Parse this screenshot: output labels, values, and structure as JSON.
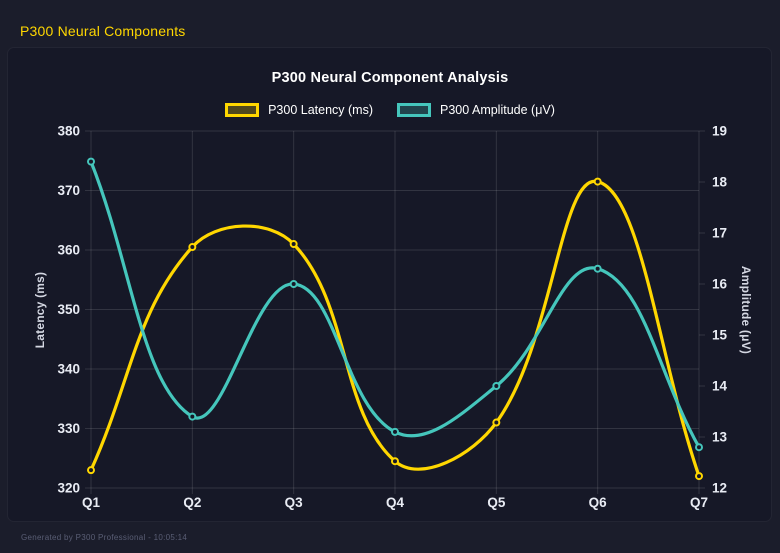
{
  "header": {
    "title": "P300 Neural Components"
  },
  "footer": {
    "text": "Generated by P300 Professional - 10:05:14"
  },
  "colors": {
    "page_background": "#1b1d2b",
    "panel_background": "#161827",
    "grid": "rgba(255,255,255,0.12)",
    "tick_text": "#e9ecf4",
    "axis_title_text": "#d4d7e2",
    "title_text": "#ffffff",
    "header_accent": "#FFD700",
    "footer_text": "#5a5e75",
    "latency_line": "#FFD700",
    "amplitude_line": "#45C6BC"
  },
  "chart_data": {
    "type": "line",
    "title": "P300 Neural Component Analysis",
    "categories": [
      "Q1",
      "Q2",
      "Q3",
      "Q4",
      "Q5",
      "Q6",
      "Q7"
    ],
    "series": [
      {
        "name": "P300 Latency (ms)",
        "axis": "left",
        "color": "#FFD700",
        "fill": "rgba(255,215,0,0.25)",
        "values": [
          323,
          360.5,
          361,
          324.5,
          331,
          371.5,
          322
        ]
      },
      {
        "name": "P300 Amplitude (μV)",
        "axis": "right",
        "color": "#45C6BC",
        "fill": "rgba(69,198,188,0.25)",
        "values": [
          18.4,
          13.4,
          16.0,
          13.1,
          14.0,
          16.3,
          12.8
        ]
      }
    ],
    "left_axis": {
      "label": "Latency (ms)",
      "min": 320,
      "max": 380,
      "tick_step": 10,
      "ticks": [
        320,
        330,
        340,
        350,
        360,
        370,
        380
      ]
    },
    "right_axis": {
      "label": "Amplitude (μV)",
      "min": 12,
      "max": 19,
      "tick_step": 1,
      "ticks": [
        12,
        13,
        14,
        15,
        16,
        17,
        18,
        19
      ]
    },
    "legend_position": "top",
    "grid": true,
    "line_tension": 0.4,
    "point_style": "hollow-circle"
  }
}
